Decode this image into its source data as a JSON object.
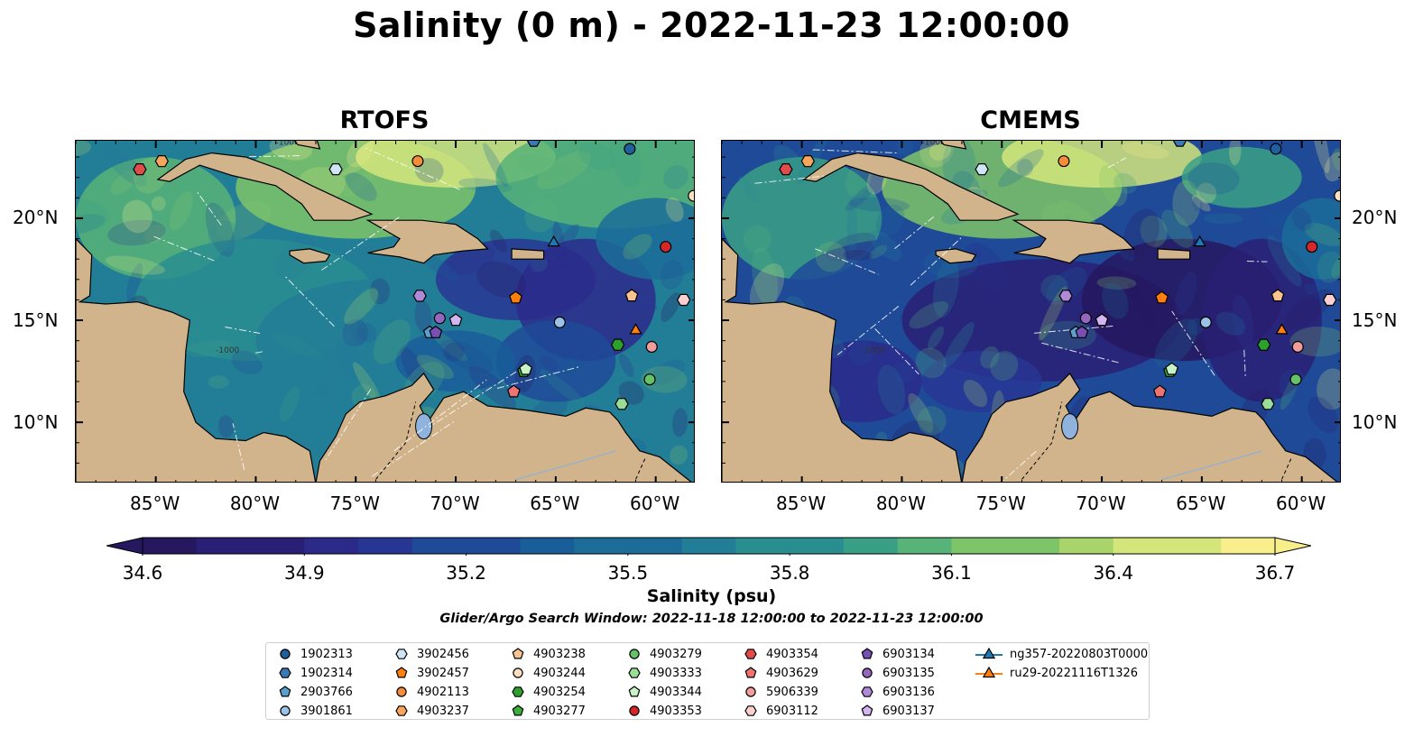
{
  "title": "Salinity (0 m) - 2022-11-23 12:00:00",
  "panels": [
    {
      "title": "RTOFS",
      "model": "rtofs"
    },
    {
      "title": "CMEMS",
      "model": "cmems"
    }
  ],
  "latitude_labels": [
    "20°N",
    "15°N",
    "10°N"
  ],
  "longitude_labels": [
    "85°W",
    "80°W",
    "75°W",
    "70°W",
    "65°W",
    "60°W"
  ],
  "map_extent": {
    "lon_min": -89,
    "lon_max": -58,
    "lat_min": 7,
    "lat_max": 23.8
  },
  "colorbar": {
    "label": "Salinity (psu)",
    "min": 34.6,
    "max": 36.7,
    "ticks": [
      "34.6",
      "34.9",
      "35.2",
      "35.5",
      "35.8",
      "36.1",
      "36.4",
      "36.7"
    ],
    "extend": "both",
    "colors": [
      "#26185f",
      "#292075",
      "#2b2a89",
      "#283693",
      "#1e4a98",
      "#195d99",
      "#1b6c99",
      "#227d97",
      "#2a8d90",
      "#3aa085",
      "#57b377",
      "#7ec469",
      "#a9d46c",
      "#d4e57b",
      "#f8ef8c"
    ]
  },
  "contour_labels": [
    "-100",
    "-1000"
  ],
  "search_window": "Glider/Argo Search Window: 2022-11-18 12:00:00 to 2022-11-23 12:00:00",
  "land_color": "#d2b48c",
  "platforms": [
    {
      "id": "1902313",
      "marker": "circle",
      "color": "#1f5f9c",
      "lon": -61.3,
      "lat": 23.4
    },
    {
      "id": "1902314",
      "marker": "hexagon",
      "color": "#3a79b5",
      "lon": -66.1,
      "lat": 23.8
    },
    {
      "id": "2903766",
      "marker": "pentagon",
      "color": "#5b9fcf",
      "lon": -71.3,
      "lat": 14.4
    },
    {
      "id": "3901861",
      "marker": "circle",
      "color": "#9cc3e5",
      "lon": -64.8,
      "lat": 14.9
    },
    {
      "id": "3902456",
      "marker": "hexagon",
      "color": "#cfe5f5",
      "lon": -76.0,
      "lat": 22.4
    },
    {
      "id": "3902457",
      "marker": "pentagon",
      "color": "#ff7f0e",
      "lon": -67.0,
      "lat": 16.1
    },
    {
      "id": "4902113",
      "marker": "circle",
      "color": "#f58c3a",
      "lon": -71.9,
      "lat": 22.8
    },
    {
      "id": "4903237",
      "marker": "hexagon",
      "color": "#f8a65e",
      "lon": -84.7,
      "lat": 22.8
    },
    {
      "id": "4903238",
      "marker": "pentagon",
      "color": "#fbc38d",
      "lon": -61.2,
      "lat": 16.2
    },
    {
      "id": "4903244",
      "marker": "circle",
      "color": "#fde0c2",
      "lon": -58.1,
      "lat": 21.1
    },
    {
      "id": "4903254",
      "marker": "hexagon",
      "color": "#2ca02c",
      "lon": -61.9,
      "lat": 13.8
    },
    {
      "id": "4903277",
      "marker": "pentagon",
      "color": "#3ab03a",
      "lon": -66.6,
      "lat": 12.5
    },
    {
      "id": "4903279",
      "marker": "circle",
      "color": "#66c266",
      "lon": -60.3,
      "lat": 12.1
    },
    {
      "id": "4903333",
      "marker": "hexagon",
      "color": "#98de98",
      "lon": -61.7,
      "lat": 10.9
    },
    {
      "id": "4903344",
      "marker": "pentagon",
      "color": "#c7f3c7",
      "lon": -66.5,
      "lat": 12.6
    },
    {
      "id": "4903353",
      "marker": "circle",
      "color": "#d62728",
      "lon": -59.5,
      "lat": 18.6
    },
    {
      "id": "4903354",
      "marker": "hexagon",
      "color": "#e04c4c",
      "lon": -85.8,
      "lat": 22.4
    },
    {
      "id": "4903629",
      "marker": "pentagon",
      "color": "#ef7373",
      "lon": -67.1,
      "lat": 11.5
    },
    {
      "id": "5906339",
      "marker": "circle",
      "color": "#f29d9d",
      "lon": -60.2,
      "lat": 13.7
    },
    {
      "id": "6903112",
      "marker": "hexagon",
      "color": "#fcd0d0",
      "lon": -58.6,
      "lat": 16.0
    },
    {
      "id": "6903134",
      "marker": "pentagon",
      "color": "#7a4fb5",
      "lon": -71.0,
      "lat": 14.4
    },
    {
      "id": "6903135",
      "marker": "circle",
      "color": "#9467bd",
      "lon": -70.8,
      "lat": 15.1
    },
    {
      "id": "6903136",
      "marker": "hexagon",
      "color": "#b08ad6",
      "lon": -71.8,
      "lat": 16.2
    },
    {
      "id": "6903137",
      "marker": "pentagon",
      "color": "#d3b5ef",
      "lon": -70.0,
      "lat": 15.0
    },
    {
      "id": "ng357-20220803T0000",
      "marker": "triangle",
      "color": "#1f77b4",
      "track": true,
      "lon": -65.1,
      "lat": 18.8
    },
    {
      "id": "ru29-20221116T1326",
      "marker": "triangle",
      "color": "#ff7f0e",
      "track": true,
      "lon": -61.0,
      "lat": 14.5
    }
  ]
}
